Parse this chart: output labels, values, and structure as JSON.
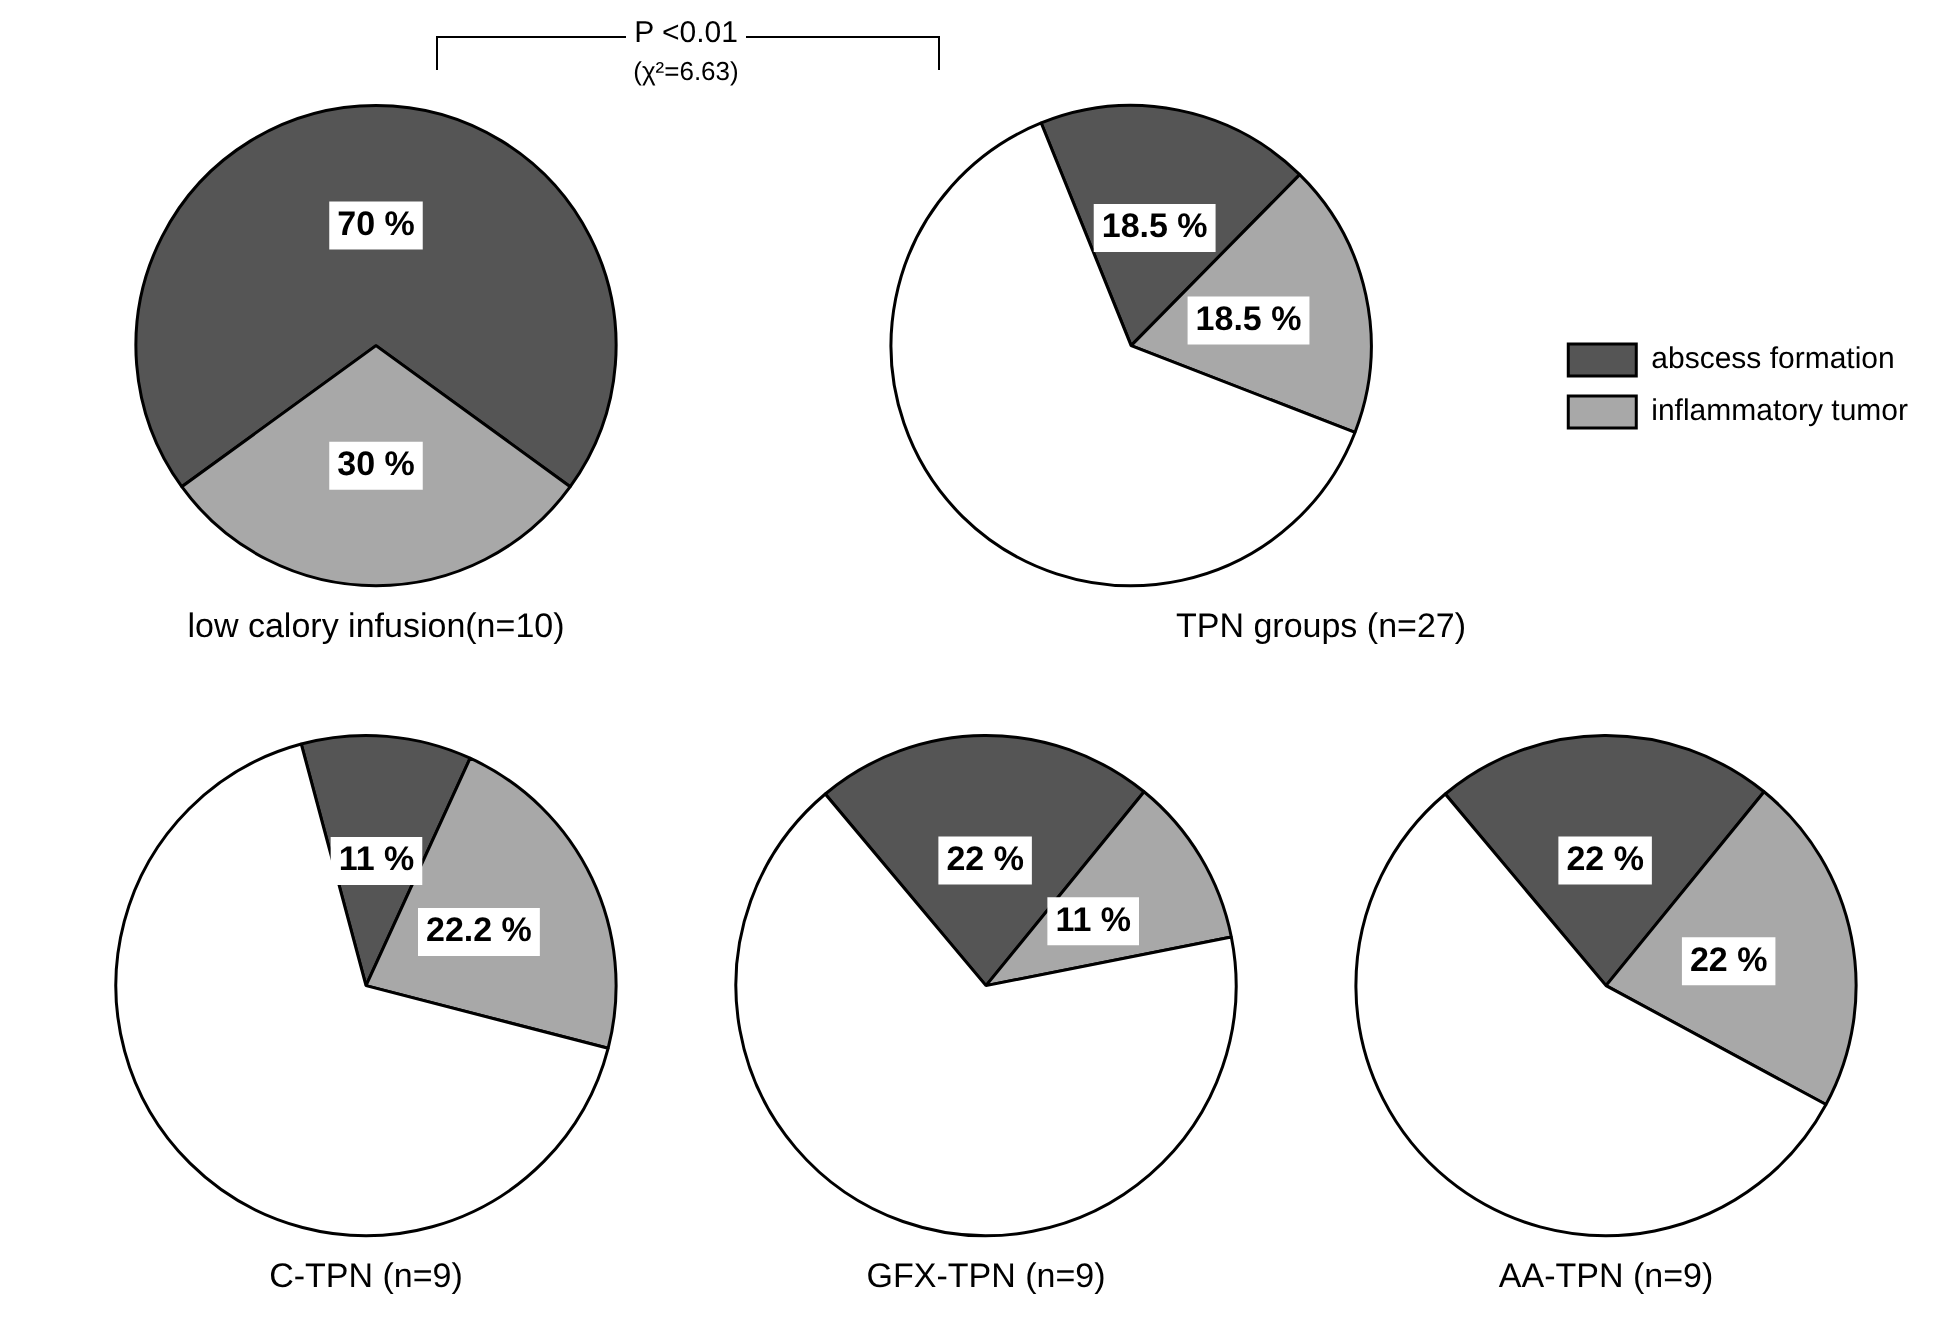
{
  "chart_data": [
    {
      "type": "pie",
      "title": "low calory infusion(n=10)",
      "categories": [
        null,
        null
      ],
      "values": [
        70,
        30
      ],
      "colors": [
        "#555555",
        "#a8a8a8"
      ],
      "value_labels": [
        "70 %",
        "30 %"
      ],
      "annotations": [
        "P <0.01",
        "(χ²=6.63)"
      ]
    },
    {
      "type": "pie",
      "title": "TPN groups (n=27)",
      "categories": [
        "abscess formation",
        "inflammatory tumor",
        null
      ],
      "values": [
        18.5,
        18.5,
        63
      ],
      "colors": [
        "#555555",
        "#a8a8a8",
        "#ffffff"
      ],
      "value_labels": [
        "18.5 %",
        "18.5 %",
        null
      ],
      "legend": "right"
    },
    {
      "type": "pie",
      "title": "C-TPN (n=9)",
      "categories": [
        null,
        null,
        null
      ],
      "values": [
        11,
        22.2,
        66.8
      ],
      "colors": [
        "#555555",
        "#a8a8a8",
        "#ffffff"
      ],
      "value_labels": [
        "11 %",
        "22.2 %",
        null
      ]
    },
    {
      "type": "pie",
      "title": "GFX-TPN (n=9)",
      "categories": [
        null,
        null,
        null
      ],
      "values": [
        22,
        11,
        67
      ],
      "colors": [
        "#555555",
        "#a8a8a8",
        "#ffffff"
      ],
      "value_labels": [
        "22 %",
        "11 %",
        null
      ]
    },
    {
      "type": "pie",
      "title": "AA-TPN (n=9)",
      "categories": [
        null,
        null,
        null
      ],
      "values": [
        22,
        22,
        56
      ],
      "colors": [
        "#555555",
        "#a8a8a8",
        "#ffffff"
      ],
      "value_labels": [
        "22 %",
        "22 %",
        null
      ]
    }
  ]
}
